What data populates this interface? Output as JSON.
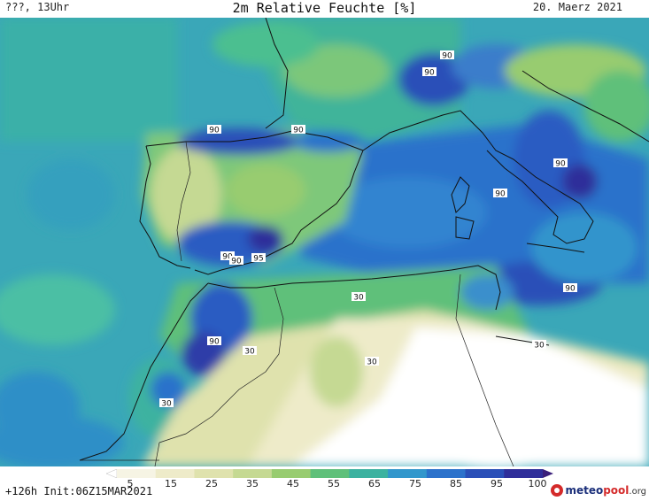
{
  "header": {
    "left": "???, 13Uhr",
    "title": "2m Relative Feuchte [%]",
    "date": "20. Maerz 2021"
  },
  "map": {
    "contour_labels": [
      "90",
      "90",
      "90",
      "90",
      "90",
      "90",
      "90",
      "90",
      "95",
      "30",
      "30",
      "90",
      "30",
      "30",
      "30",
      "30",
      "90"
    ]
  },
  "colorbar": {
    "ticks": [
      "5",
      "15",
      "25",
      "35",
      "45",
      "55",
      "65",
      "75",
      "85",
      "95",
      "100"
    ],
    "colors": [
      "#ffffff",
      "#f6f4e4",
      "#eeebc9",
      "#dfe2ad",
      "#c5d993",
      "#98cc70",
      "#5fc07a",
      "#3cb2a0",
      "#3297cc",
      "#2c72cb",
      "#2a4fb8",
      "#2f2e9a",
      "#3a1f7a"
    ]
  },
  "footer": {
    "init_text": "+126h Init:06Z15MAR2021",
    "logo": {
      "name_part1": "meteo",
      "name_part2": "pool",
      "suffix": ".org"
    }
  }
}
